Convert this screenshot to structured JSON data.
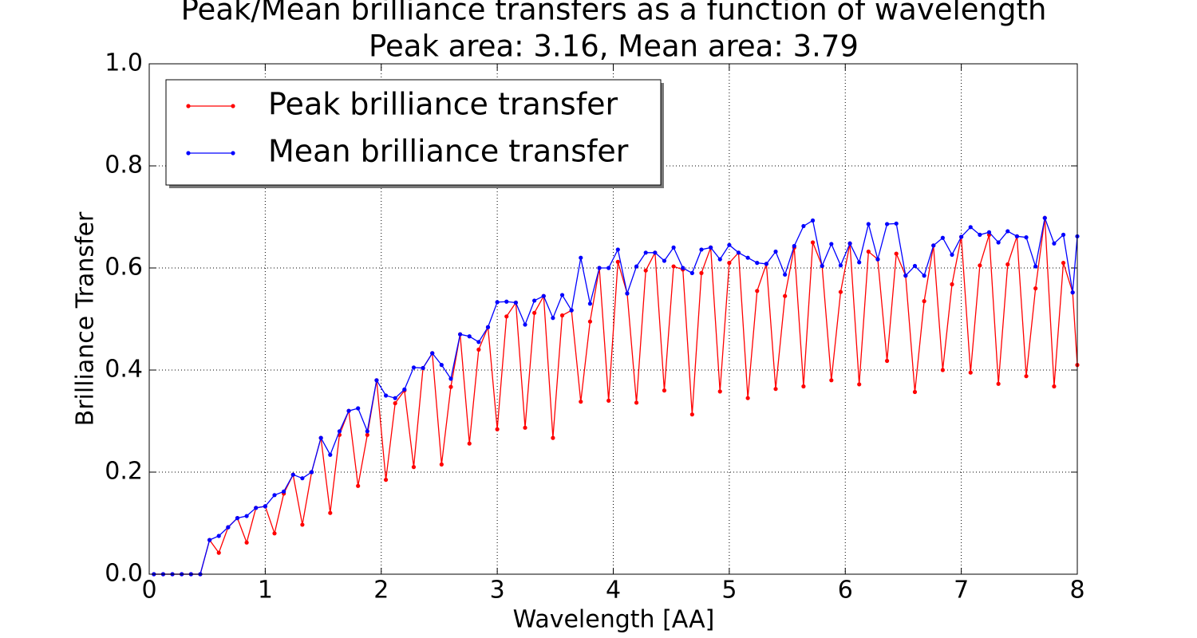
{
  "chart_data": {
    "type": "line",
    "title": "Peak/Mean brilliance transfers as a function of wavelength",
    "subtitle": "Peak area: 3.16, Mean area: 3.79",
    "x_label": "Wavelength [AA]",
    "y_label": "Brilliance Transfer",
    "x": [
      0.04,
      0.12,
      0.2,
      0.28,
      0.36,
      0.44,
      0.52,
      0.6,
      0.68,
      0.76,
      0.84,
      0.92,
      1.0,
      1.08,
      1.16,
      1.24,
      1.32,
      1.4,
      1.48,
      1.56,
      1.64,
      1.72,
      1.8,
      1.88,
      1.96,
      2.04,
      2.12,
      2.2,
      2.28,
      2.36,
      2.44,
      2.52,
      2.6,
      2.68,
      2.76,
      2.84,
      2.92,
      3.0,
      3.08,
      3.16,
      3.24,
      3.32,
      3.4,
      3.48,
      3.56,
      3.64,
      3.72,
      3.8,
      3.88,
      3.96,
      4.04,
      4.12,
      4.2,
      4.28,
      4.36,
      4.44,
      4.52,
      4.6,
      4.68,
      4.76,
      4.84,
      4.92,
      5.0,
      5.08,
      5.16,
      5.24,
      5.32,
      5.4,
      5.48,
      5.56,
      5.64,
      5.72,
      5.8,
      5.88,
      5.96,
      6.04,
      6.12,
      6.2,
      6.28,
      6.36,
      6.44,
      6.52,
      6.6,
      6.68,
      6.76,
      6.84,
      6.92,
      7.0,
      7.08,
      7.16,
      7.24,
      7.32,
      7.4,
      7.48,
      7.56,
      7.64,
      7.72,
      7.8,
      7.88,
      7.96,
      8.0
    ],
    "series": [
      {
        "name": "Peak brilliance transfer",
        "color": "#ff0000",
        "values": [
          0,
          0,
          0,
          0,
          0,
          0,
          0.067,
          0.042,
          0.092,
          0.11,
          0.062,
          0.13,
          0.133,
          0.08,
          0.158,
          0.195,
          0.097,
          0.2,
          0.267,
          0.12,
          0.273,
          0.32,
          0.173,
          0.273,
          0.38,
          0.185,
          0.335,
          0.36,
          0.21,
          0.404,
          0.433,
          0.215,
          0.367,
          0.47,
          0.256,
          0.44,
          0.484,
          0.284,
          0.505,
          0.532,
          0.287,
          0.512,
          0.545,
          0.267,
          0.507,
          0.517,
          0.338,
          0.495,
          0.6,
          0.34,
          0.612,
          0.55,
          0.336,
          0.595,
          0.63,
          0.36,
          0.603,
          0.597,
          0.313,
          0.59,
          0.64,
          0.358,
          0.61,
          0.63,
          0.345,
          0.555,
          0.608,
          0.363,
          0.545,
          0.64,
          0.368,
          0.65,
          0.604,
          0.38,
          0.553,
          0.648,
          0.372,
          0.632,
          0.617,
          0.418,
          0.628,
          0.585,
          0.357,
          0.535,
          0.644,
          0.4,
          0.568,
          0.661,
          0.395,
          0.605,
          0.665,
          0.373,
          0.607,
          0.662,
          0.388,
          0.56,
          0.698,
          0.368,
          0.61,
          0.552,
          0.41
        ]
      },
      {
        "name": "Mean brilliance transfer",
        "color": "#0000ff",
        "values": [
          0,
          0,
          0,
          0,
          0,
          0,
          0.067,
          0.075,
          0.092,
          0.11,
          0.114,
          0.13,
          0.133,
          0.155,
          0.162,
          0.195,
          0.188,
          0.2,
          0.267,
          0.234,
          0.28,
          0.32,
          0.325,
          0.28,
          0.38,
          0.35,
          0.345,
          0.362,
          0.405,
          0.404,
          0.433,
          0.41,
          0.383,
          0.47,
          0.466,
          0.455,
          0.484,
          0.533,
          0.534,
          0.532,
          0.489,
          0.536,
          0.545,
          0.502,
          0.547,
          0.517,
          0.62,
          0.53,
          0.6,
          0.6,
          0.636,
          0.55,
          0.603,
          0.63,
          0.63,
          0.614,
          0.64,
          0.6,
          0.59,
          0.636,
          0.64,
          0.617,
          0.645,
          0.63,
          0.62,
          0.61,
          0.608,
          0.632,
          0.587,
          0.643,
          0.682,
          0.693,
          0.604,
          0.647,
          0.605,
          0.648,
          0.611,
          0.686,
          0.617,
          0.686,
          0.687,
          0.585,
          0.604,
          0.585,
          0.644,
          0.659,
          0.626,
          0.661,
          0.68,
          0.665,
          0.67,
          0.65,
          0.672,
          0.662,
          0.66,
          0.603,
          0.698,
          0.648,
          0.665,
          0.552,
          0.662
        ]
      }
    ],
    "xlim": [
      0,
      8
    ],
    "xticks": [
      0,
      1,
      2,
      3,
      4,
      5,
      6,
      7,
      8
    ],
    "ylim": [
      0,
      1
    ],
    "yticks": [
      {
        "value": 0,
        "label": "0.0"
      },
      0.2,
      0.4,
      0.6,
      0.8,
      {
        "value": 1,
        "label": "1.0"
      }
    ],
    "grid": true,
    "legend": "upper left"
  }
}
